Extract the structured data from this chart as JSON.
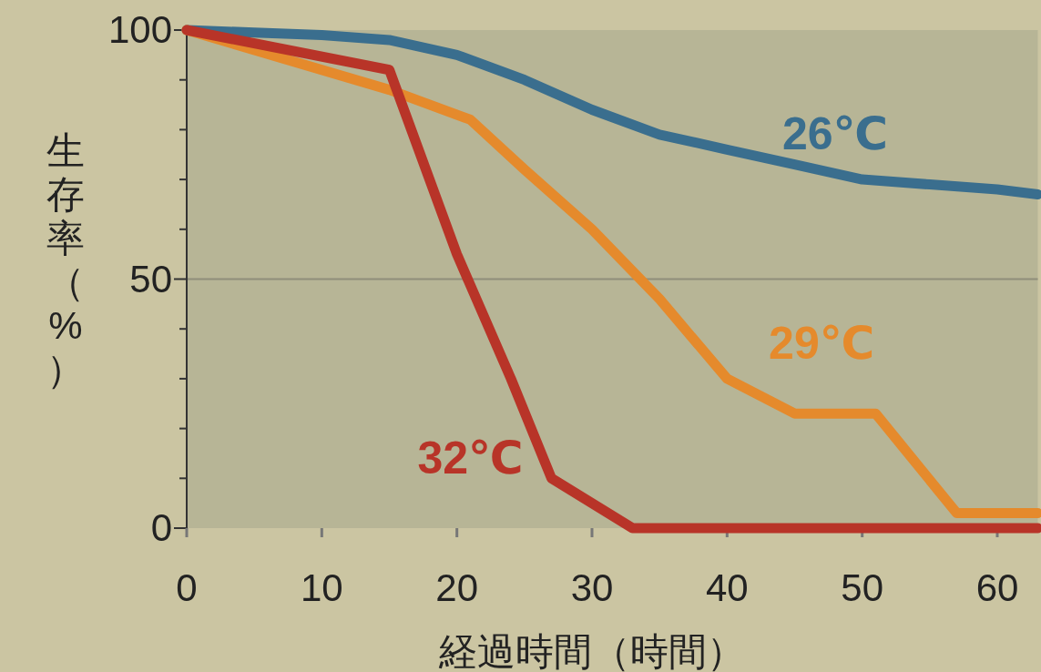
{
  "chart_data": {
    "type": "line",
    "xlabel": "経過時間（時間）",
    "ylabel": "生存率（%）",
    "xlim": [
      0,
      63
    ],
    "ylim": [
      0,
      100
    ],
    "xticks": [
      0,
      10,
      20,
      30,
      40,
      50,
      60
    ],
    "yticks": [
      0,
      {
        "value": 10,
        "label": null
      },
      {
        "value": 20,
        "label": null
      },
      {
        "value": 30,
        "label": null
      },
      {
        "value": 40,
        "label": null
      },
      50,
      {
        "value": 60,
        "label": null
      },
      {
        "value": 70,
        "label": null
      },
      {
        "value": 80,
        "label": null
      },
      {
        "value": 90,
        "label": null
      },
      100
    ],
    "grid": "y",
    "marker": "none",
    "line_style": "solid",
    "series": [
      {
        "name": "26℃",
        "color": "#3a6e8e",
        "x": [
          0,
          5,
          10,
          15,
          20,
          25,
          30,
          35,
          40,
          45,
          50,
          55,
          60,
          63
        ],
        "values": [
          100,
          99.5,
          99,
          98,
          95,
          90,
          84,
          79,
          76,
          73,
          70,
          69,
          68,
          67
        ]
      },
      {
        "name": "29℃",
        "color": "#e58a2c",
        "x": [
          0,
          15,
          21,
          25,
          30,
          35,
          40,
          45,
          51,
          57,
          63
        ],
        "values": [
          100,
          88,
          82,
          72,
          60,
          46,
          30,
          23,
          23,
          3,
          3
        ]
      },
      {
        "name": "32℃",
        "color": "#b83428",
        "x": [
          0,
          15,
          20,
          24,
          27,
          33,
          63
        ],
        "values": [
          100,
          92,
          55,
          30,
          10,
          0,
          0
        ]
      }
    ]
  }
}
